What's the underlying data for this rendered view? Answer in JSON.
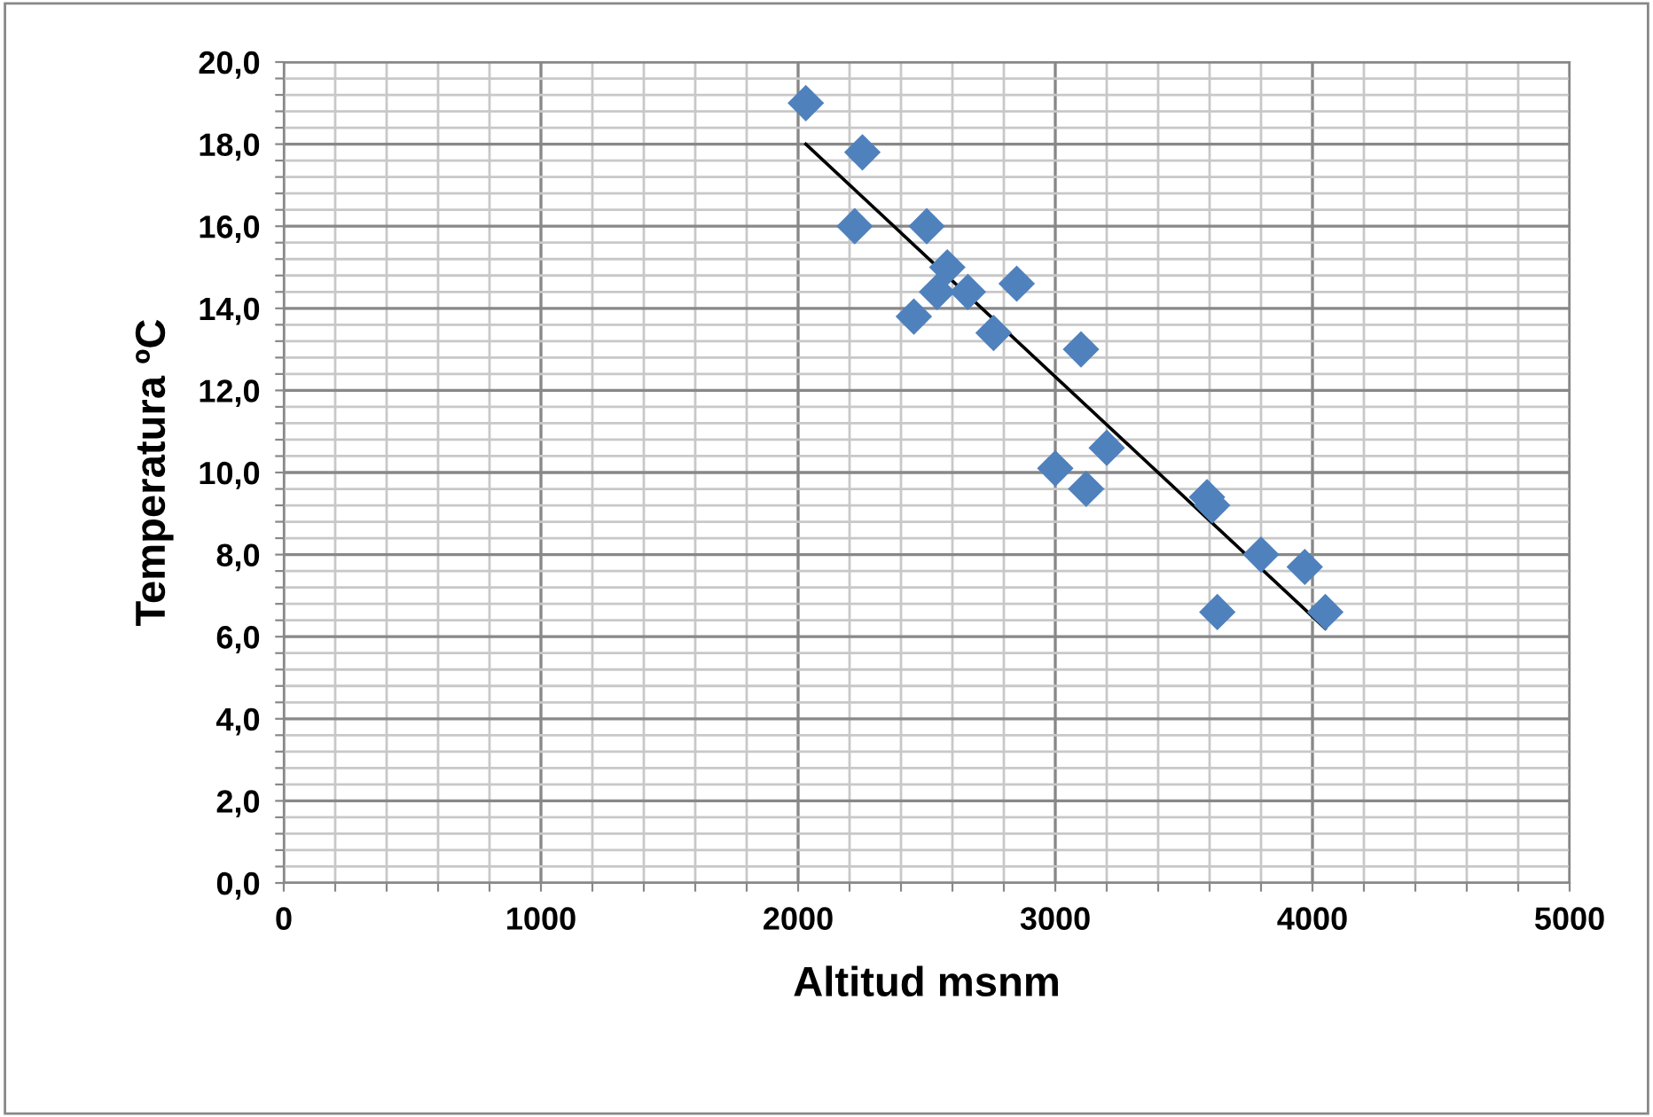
{
  "chart_data": {
    "type": "scatter",
    "xlabel": "Altitud msnm",
    "ylabel": "Temperatura ºC",
    "xlim": [
      0,
      5000
    ],
    "ylim": [
      0,
      20
    ],
    "xticks": [
      0,
      {
        "value": 200,
        "label": null
      },
      {
        "value": 400,
        "label": null
      },
      {
        "value": 600,
        "label": null
      },
      {
        "value": 800,
        "label": null
      },
      1000,
      {
        "value": 1200,
        "label": null
      },
      {
        "value": 1400,
        "label": null
      },
      {
        "value": 1600,
        "label": null
      },
      {
        "value": 1800,
        "label": null
      },
      2000,
      {
        "value": 2200,
        "label": null
      },
      {
        "value": 2400,
        "label": null
      },
      {
        "value": 2600,
        "label": null
      },
      {
        "value": 2800,
        "label": null
      },
      3000,
      {
        "value": 3200,
        "label": null
      },
      {
        "value": 3400,
        "label": null
      },
      {
        "value": 3600,
        "label": null
      },
      {
        "value": 3800,
        "label": null
      },
      4000,
      {
        "value": 4200,
        "label": null
      },
      {
        "value": 4400,
        "label": null
      },
      {
        "value": 4600,
        "label": null
      },
      {
        "value": 4800,
        "label": null
      },
      5000
    ],
    "yticks": [
      {
        "value": 0,
        "label": "0,0"
      },
      {
        "value": 0.4,
        "label": null
      },
      {
        "value": 0.8,
        "label": null
      },
      {
        "value": 1.2,
        "label": null
      },
      {
        "value": 1.6,
        "label": null
      },
      {
        "value": 2,
        "label": "2,0"
      },
      {
        "value": 2.4,
        "label": null
      },
      {
        "value": 2.8,
        "label": null
      },
      {
        "value": 3.2,
        "label": null
      },
      {
        "value": 3.6,
        "label": null
      },
      {
        "value": 4,
        "label": "4,0"
      },
      {
        "value": 4.4,
        "label": null
      },
      {
        "value": 4.8,
        "label": null
      },
      {
        "value": 5.2,
        "label": null
      },
      {
        "value": 5.6,
        "label": null
      },
      {
        "value": 6,
        "label": "6,0"
      },
      {
        "value": 6.4,
        "label": null
      },
      {
        "value": 6.8,
        "label": null
      },
      {
        "value": 7.2,
        "label": null
      },
      {
        "value": 7.6,
        "label": null
      },
      {
        "value": 8,
        "label": "8,0"
      },
      {
        "value": 8.4,
        "label": null
      },
      {
        "value": 8.8,
        "label": null
      },
      {
        "value": 9.2,
        "label": null
      },
      {
        "value": 9.6,
        "label": null
      },
      {
        "value": 10,
        "label": "10,0"
      },
      {
        "value": 10.4,
        "label": null
      },
      {
        "value": 10.8,
        "label": null
      },
      {
        "value": 11.2,
        "label": null
      },
      {
        "value": 11.6,
        "label": null
      },
      {
        "value": 12,
        "label": "12,0"
      },
      {
        "value": 12.4,
        "label": null
      },
      {
        "value": 12.8,
        "label": null
      },
      {
        "value": 13.2,
        "label": null
      },
      {
        "value": 13.6,
        "label": null
      },
      {
        "value": 14,
        "label": "14,0"
      },
      {
        "value": 14.4,
        "label": null
      },
      {
        "value": 14.8,
        "label": null
      },
      {
        "value": 15.2,
        "label": null
      },
      {
        "value": 15.6,
        "label": null
      },
      {
        "value": 16,
        "label": "16,0"
      },
      {
        "value": 16.4,
        "label": null
      },
      {
        "value": 16.8,
        "label": null
      },
      {
        "value": 17.2,
        "label": null
      },
      {
        "value": 17.6,
        "label": null
      },
      {
        "value": 18,
        "label": "18,0"
      },
      {
        "value": 18.4,
        "label": null
      },
      {
        "value": 18.8,
        "label": null
      },
      {
        "value": 19.2,
        "label": null
      },
      {
        "value": 19.6,
        "label": null
      },
      {
        "value": 20,
        "label": "20,0"
      }
    ],
    "grid": true,
    "legend": false,
    "marker": "diamond",
    "series": [
      {
        "color": "#4f81bd",
        "x": [
          2030,
          2250,
          2220,
          2500,
          2580,
          2540,
          2660,
          2450,
          2850,
          2760,
          3100,
          3200,
          3000,
          3120,
          3590,
          3610,
          3800,
          3970,
          3630,
          4050
        ],
        "values": [
          19.0,
          17.8,
          16.0,
          16.0,
          15.0,
          14.4,
          14.4,
          13.8,
          14.6,
          13.4,
          13.0,
          10.6,
          10.1,
          9.6,
          9.4,
          9.2,
          8.0,
          7.7,
          6.6,
          6.6
        ]
      },
      {
        "type": "line",
        "color": "#000000",
        "marker": "none",
        "x": [
          2030,
          4050
        ],
        "values": [
          18.0,
          6.2
        ]
      }
    ]
  }
}
